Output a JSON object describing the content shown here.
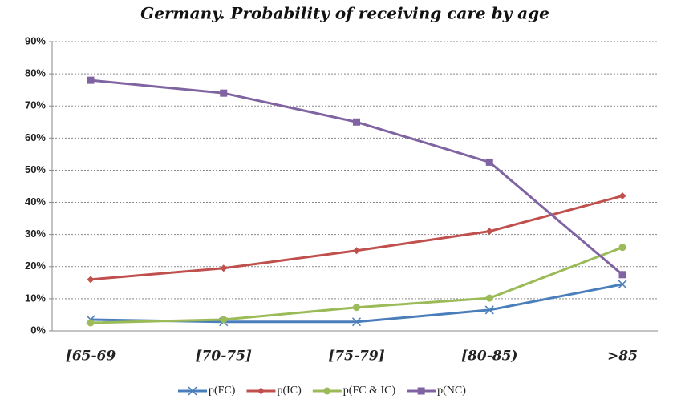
{
  "chart_data": {
    "type": "line",
    "title": "Germany. Probability of receiving care by age",
    "categories": [
      "[65-69",
      "[70-75]",
      "[75-79]",
      "[80-85)",
      ">85"
    ],
    "series": [
      {
        "name": "p(FC)",
        "color": "#4a7ebb",
        "marker": "x",
        "values": [
          3.5,
          2.8,
          2.8,
          6.5,
          14.5
        ]
      },
      {
        "name": "p(IC)",
        "color": "#c0504d",
        "marker": "diamond",
        "values": [
          16,
          19.5,
          25,
          31,
          42
        ]
      },
      {
        "name": "p(FC & IC)",
        "color": "#9bbb59",
        "marker": "circle",
        "values": [
          2.5,
          3.5,
          7.3,
          10.2,
          26
        ]
      },
      {
        "name": "p(NC)",
        "color": "#8064a2",
        "marker": "square",
        "values": [
          78,
          74,
          65,
          52.5,
          17.5
        ]
      }
    ],
    "ylim": [
      0,
      90
    ],
    "yticks": [
      {
        "value": 0,
        "label": "0%"
      },
      {
        "value": 10,
        "label": "10%"
      },
      {
        "value": 20,
        "label": "20%"
      },
      {
        "value": 30,
        "label": "30%"
      },
      {
        "value": 40,
        "label": "40%"
      },
      {
        "value": 50,
        "label": "50%"
      },
      {
        "value": 60,
        "label": "60%"
      },
      {
        "value": 70,
        "label": "70%"
      },
      {
        "value": 80,
        "label": "80%"
      },
      {
        "value": 90,
        "label": "90%"
      }
    ],
    "grid": true,
    "legend": "bottom"
  }
}
